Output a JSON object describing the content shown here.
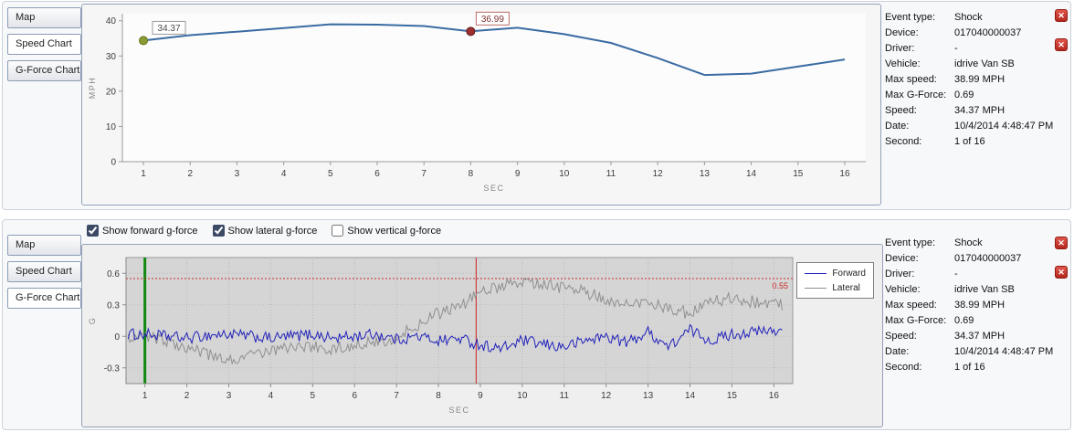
{
  "icons": {
    "close": "✕"
  },
  "tabs": [
    {
      "label": "Map"
    },
    {
      "label": "Speed Chart"
    },
    {
      "label": "G-Force Chart"
    }
  ],
  "top_panel": {
    "selected_tab": "Speed Chart"
  },
  "bottom_panel": {
    "selected_tab": "G-Force Chart"
  },
  "gforce_controls": [
    {
      "label": "Show forward g-force",
      "checked": true
    },
    {
      "label": "Show lateral g-force",
      "checked": true
    },
    {
      "label": "Show vertical g-force",
      "checked": false
    }
  ],
  "event_info": {
    "rows": [
      {
        "label": "Event type:",
        "value": "Shock"
      },
      {
        "label": "Device:",
        "value": "017040000037"
      },
      {
        "label": "Driver:",
        "value": "-"
      },
      {
        "label": "Vehicle:",
        "value": "idrive Van SB"
      },
      {
        "label": "Max speed:",
        "value": "38.99 MPH"
      },
      {
        "label": "Max G-Force:",
        "value": "0.69"
      },
      {
        "label": "Speed:",
        "value": "34.37 MPH"
      },
      {
        "label": "Date:",
        "value": "10/4/2014 4:48:47 PM"
      },
      {
        "label": "Second:",
        "value": "1 of 16"
      }
    ]
  },
  "chart_data": [
    {
      "type": "line",
      "title": "Speed Chart",
      "xlabel": "SEC",
      "ylabel": "MPH",
      "xlim": [
        0.55,
        16.45
      ],
      "ylim": [
        0,
        42
      ],
      "yticks": [
        0,
        10,
        20,
        30,
        40
      ],
      "xticks": [
        1,
        2,
        3,
        4,
        5,
        6,
        7,
        8,
        9,
        10,
        11,
        12,
        13,
        14,
        15,
        16
      ],
      "x": [
        1,
        2,
        3,
        4,
        5,
        6,
        7,
        8,
        9,
        10,
        11,
        12,
        13,
        14,
        15,
        16
      ],
      "series": [
        {
          "name": "Speed",
          "color": "#3a6ba3",
          "values": [
            34.37,
            35.9,
            36.9,
            37.9,
            38.99,
            38.9,
            38.5,
            36.99,
            38.0,
            36.2,
            33.7,
            29.4,
            24.6,
            25.0,
            27.0,
            29.0
          ]
        }
      ],
      "annotations": [
        {
          "x": 1,
          "y": 34.37,
          "label": "34.37",
          "dot_color": "#8b9a33",
          "dot_border": "#66731f",
          "box_border": "#9a9a9a",
          "text_color": "#4a4a4a"
        },
        {
          "x": 8,
          "y": 36.99,
          "label": "36.99",
          "dot_color": "#9d2f2f",
          "dot_border": "#5f1b1b",
          "box_border": "#bb6a6a",
          "text_color": "#7d2f2f"
        }
      ],
      "grid": false
    },
    {
      "type": "line",
      "title": "G-Force Chart",
      "xlabel": "SEC",
      "ylabel": "G",
      "xlim": [
        0.55,
        16.45
      ],
      "ylim": [
        -0.45,
        0.75
      ],
      "yticks": [
        -0.3,
        0,
        0.3,
        0.6
      ],
      "xticks": [
        1,
        2,
        3,
        4,
        5,
        6,
        7,
        8,
        9,
        10,
        11,
        12,
        13,
        14,
        15,
        16
      ],
      "grid": true,
      "legend_position": "right",
      "series": [
        {
          "name": "Forward",
          "color": "#2222bb",
          "noise": 0.055,
          "trend_x": [
            1,
            1.5,
            2,
            2.5,
            3,
            3.5,
            4,
            4.5,
            5,
            5.5,
            6,
            6.5,
            7,
            7.5,
            8,
            8.5,
            9,
            9.5,
            10,
            10.5,
            11,
            11.5,
            12,
            12.5,
            13,
            13.5,
            14,
            14.5,
            15,
            15.5,
            16
          ],
          "trend": [
            0.02,
            0,
            -0.02,
            0.01,
            0.02,
            0,
            -0.02,
            0,
            0.02,
            -0.02,
            0,
            0.02,
            -0.03,
            0,
            -0.04,
            -0.02,
            -0.08,
            -0.12,
            -0.04,
            -0.08,
            -0.1,
            -0.04,
            0,
            -0.06,
            0.04,
            -0.1,
            0.06,
            -0.04,
            0.02,
            0.04,
            0.05
          ]
        },
        {
          "name": "Lateral",
          "color": "#8f8f8f",
          "noise": 0.06,
          "trend_x": [
            1,
            1.5,
            2,
            2.5,
            3,
            3.5,
            4,
            4.5,
            5,
            5.5,
            6,
            6.5,
            7,
            7.5,
            8,
            8.5,
            9,
            9.5,
            10,
            10.5,
            11,
            11.5,
            12,
            12.5,
            13,
            13.5,
            14,
            14.5,
            15,
            15.5,
            16
          ],
          "trend": [
            0,
            -0.04,
            -0.1,
            -0.18,
            -0.23,
            -0.19,
            -0.13,
            -0.1,
            -0.1,
            -0.12,
            -0.08,
            -0.05,
            -0.01,
            0.1,
            0.22,
            0.28,
            0.42,
            0.48,
            0.53,
            0.5,
            0.46,
            0.42,
            0.36,
            0.3,
            0.33,
            0.26,
            0.22,
            0.33,
            0.36,
            0.33,
            0.3
          ]
        }
      ],
      "threshold": {
        "y": 0.55,
        "label": "0.55",
        "color": "#cc2a2a"
      },
      "vlines": [
        {
          "x": 1,
          "color": "#0f8a0f",
          "width": 3
        },
        {
          "x": 8.9,
          "color": "#cc2222",
          "width": 1
        }
      ]
    }
  ]
}
